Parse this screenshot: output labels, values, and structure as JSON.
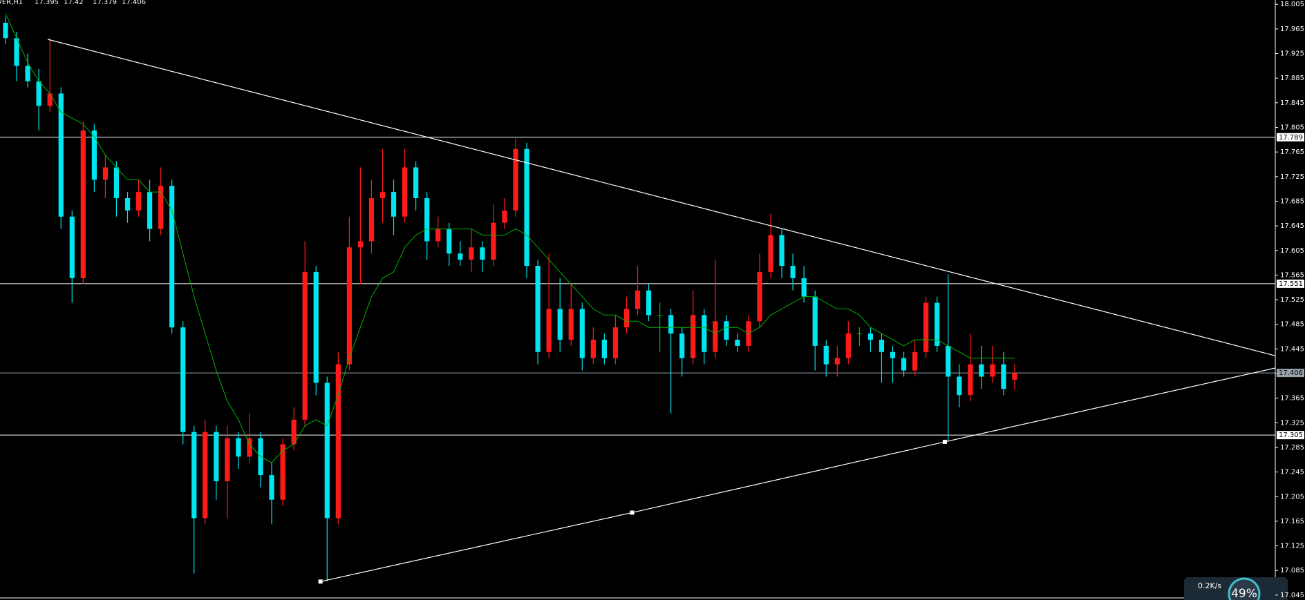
{
  "chart_data": {
    "type": "candlestick",
    "symbol": "VER,H1",
    "header_ohlc": [
      17.395,
      17.42,
      17.379,
      17.406
    ],
    "bull_color": "#ff1a1a",
    "bear_color": "#00e5f0",
    "doji_color": "#00c000",
    "ma_color": "#00b400",
    "xlim": [
      -0.5,
      114.5
    ],
    "ylim": [
      17.037,
      18.012
    ],
    "yticks": [
      18.005,
      17.965,
      17.925,
      17.885,
      17.845,
      17.805,
      17.765,
      17.725,
      17.685,
      17.645,
      17.605,
      17.565,
      17.525,
      17.485,
      17.445,
      17.405,
      17.365,
      17.325,
      17.285,
      17.245,
      17.205,
      17.165,
      17.125,
      17.085,
      17.045
    ],
    "levels": [
      {
        "value": 17.789,
        "color": "#ffffff"
      },
      {
        "value": 17.551,
        "color": "#ffffff"
      },
      {
        "value": 17.406,
        "color": "#9aa4ad"
      },
      {
        "value": 17.305,
        "color": "#ffffff"
      }
    ],
    "trendlines": [
      {
        "color": "#ffffff",
        "points": [
          [
            3.8,
            17.948
          ],
          [
            114.5,
            17.434
          ]
        ],
        "anchors": false
      },
      {
        "color": "#ffffff",
        "points": [
          [
            28.4,
            17.067
          ],
          [
            56.5,
            17.179
          ],
          [
            84.7,
            17.294
          ],
          [
            114.5,
            17.414
          ]
        ],
        "anchors": true
      }
    ],
    "ohlc": [
      [
        17.975,
        17.985,
        17.94,
        17.95
      ],
      [
        17.95,
        17.96,
        17.88,
        17.905
      ],
      [
        17.905,
        17.925,
        17.87,
        17.88
      ],
      [
        17.88,
        17.9,
        17.8,
        17.84
      ],
      [
        17.84,
        17.95,
        17.83,
        17.86
      ],
      [
        17.86,
        17.87,
        17.64,
        17.66
      ],
      [
        17.66,
        17.67,
        17.52,
        17.56
      ],
      [
        17.56,
        17.815,
        17.55,
        17.8
      ],
      [
        17.8,
        17.81,
        17.7,
        17.72
      ],
      [
        17.72,
        17.76,
        17.69,
        17.74
      ],
      [
        17.74,
        17.75,
        17.66,
        17.69
      ],
      [
        17.69,
        17.7,
        17.65,
        17.67
      ],
      [
        17.67,
        17.72,
        17.66,
        17.7
      ],
      [
        17.7,
        17.72,
        17.62,
        17.64
      ],
      [
        17.64,
        17.74,
        17.63,
        17.71
      ],
      [
        17.71,
        17.72,
        17.47,
        17.48
      ],
      [
        17.48,
        17.49,
        17.29,
        17.31
      ],
      [
        17.31,
        17.32,
        17.08,
        17.17
      ],
      [
        17.17,
        17.33,
        17.16,
        17.31
      ],
      [
        17.31,
        17.32,
        17.2,
        17.23
      ],
      [
        17.23,
        17.32,
        17.17,
        17.3
      ],
      [
        17.3,
        17.31,
        17.25,
        17.27
      ],
      [
        17.27,
        17.34,
        17.26,
        17.3
      ],
      [
        17.3,
        17.31,
        17.22,
        17.24
      ],
      [
        17.24,
        17.26,
        17.16,
        17.2
      ],
      [
        17.2,
        17.3,
        17.19,
        17.29
      ],
      [
        17.29,
        17.35,
        17.28,
        17.33
      ],
      [
        17.33,
        17.62,
        17.32,
        17.57
      ],
      [
        17.57,
        17.58,
        17.37,
        17.39
      ],
      [
        17.39,
        17.4,
        17.067,
        17.17
      ],
      [
        17.17,
        17.44,
        17.16,
        17.42
      ],
      [
        17.42,
        17.66,
        17.41,
        17.61
      ],
      [
        17.61,
        17.74,
        17.55,
        17.62
      ],
      [
        17.62,
        17.72,
        17.6,
        17.69
      ],
      [
        17.69,
        17.77,
        17.65,
        17.7
      ],
      [
        17.7,
        17.72,
        17.63,
        17.66
      ],
      [
        17.66,
        17.77,
        17.65,
        17.74
      ],
      [
        17.74,
        17.75,
        17.67,
        17.69
      ],
      [
        17.69,
        17.7,
        17.59,
        17.62
      ],
      [
        17.62,
        17.66,
        17.61,
        17.64
      ],
      [
        17.64,
        17.65,
        17.58,
        17.6
      ],
      [
        17.6,
        17.62,
        17.58,
        17.59
      ],
      [
        17.59,
        17.64,
        17.57,
        17.61
      ],
      [
        17.61,
        17.62,
        17.57,
        17.59
      ],
      [
        17.59,
        17.68,
        17.58,
        17.65
      ],
      [
        17.65,
        17.69,
        17.64,
        17.67
      ],
      [
        17.67,
        17.787,
        17.66,
        17.77
      ],
      [
        17.77,
        17.78,
        17.56,
        17.58
      ],
      [
        17.58,
        17.59,
        17.42,
        17.44
      ],
      [
        17.44,
        17.6,
        17.43,
        17.51
      ],
      [
        17.51,
        17.56,
        17.44,
        17.46
      ],
      [
        17.46,
        17.55,
        17.45,
        17.51
      ],
      [
        17.51,
        17.52,
        17.41,
        17.43
      ],
      [
        17.43,
        17.48,
        17.42,
        17.46
      ],
      [
        17.46,
        17.47,
        17.42,
        17.43
      ],
      [
        17.43,
        17.5,
        17.42,
        17.48
      ],
      [
        17.48,
        17.53,
        17.47,
        17.51
      ],
      [
        17.51,
        17.58,
        17.5,
        17.54
      ],
      [
        17.54,
        17.55,
        17.49,
        17.5
      ],
      [
        17.5,
        17.52,
        17.44,
        17.5
      ],
      [
        17.5,
        17.51,
        17.34,
        17.47
      ],
      [
        17.47,
        17.48,
        17.4,
        17.43
      ],
      [
        17.43,
        17.54,
        17.42,
        17.5
      ],
      [
        17.5,
        17.51,
        17.42,
        17.44
      ],
      [
        17.44,
        17.59,
        17.43,
        17.49
      ],
      [
        17.49,
        17.5,
        17.45,
        17.46
      ],
      [
        17.46,
        17.47,
        17.44,
        17.45
      ],
      [
        17.45,
        17.5,
        17.44,
        17.49
      ],
      [
        17.49,
        17.6,
        17.48,
        17.57
      ],
      [
        17.57,
        17.665,
        17.56,
        17.63
      ],
      [
        17.63,
        17.64,
        17.56,
        17.58
      ],
      [
        17.58,
        17.6,
        17.54,
        17.56
      ],
      [
        17.56,
        17.58,
        17.52,
        17.53
      ],
      [
        17.53,
        17.54,
        17.41,
        17.45
      ],
      [
        17.45,
        17.46,
        17.4,
        17.42
      ],
      [
        17.42,
        17.45,
        17.4,
        17.43
      ],
      [
        17.43,
        17.49,
        17.42,
        17.47
      ],
      [
        17.47,
        17.48,
        17.45,
        17.47
      ],
      [
        17.47,
        17.48,
        17.44,
        17.46
      ],
      [
        17.46,
        17.47,
        17.39,
        17.44
      ],
      [
        17.44,
        17.45,
        17.39,
        17.43
      ],
      [
        17.43,
        17.44,
        17.4,
        17.41
      ],
      [
        17.41,
        17.46,
        17.4,
        17.44
      ],
      [
        17.44,
        17.53,
        17.43,
        17.52
      ],
      [
        17.52,
        17.53,
        17.44,
        17.45
      ],
      [
        17.45,
        17.566,
        17.295,
        17.4
      ],
      [
        17.4,
        17.42,
        17.35,
        17.37
      ],
      [
        17.37,
        17.47,
        17.36,
        17.42
      ],
      [
        17.42,
        17.45,
        17.38,
        17.4
      ],
      [
        17.4,
        17.45,
        17.39,
        17.42
      ],
      [
        17.42,
        17.44,
        17.37,
        17.38
      ],
      [
        17.395,
        17.42,
        17.379,
        17.406
      ]
    ],
    "ma": [
      17.99,
      17.95,
      17.91,
      17.88,
      17.86,
      17.83,
      17.82,
      17.81,
      17.79,
      17.76,
      17.74,
      17.72,
      17.72,
      17.7,
      17.7,
      17.67,
      17.6,
      17.53,
      17.47,
      17.41,
      17.36,
      17.33,
      17.29,
      17.27,
      17.26,
      17.28,
      17.29,
      17.32,
      17.33,
      17.32,
      17.37,
      17.43,
      17.48,
      17.53,
      17.56,
      17.57,
      17.61,
      17.63,
      17.64,
      17.64,
      17.64,
      17.64,
      17.64,
      17.63,
      17.63,
      17.63,
      17.64,
      17.63,
      17.61,
      17.59,
      17.57,
      17.55,
      17.53,
      17.51,
      17.5,
      17.5,
      17.49,
      17.49,
      17.48,
      17.48,
      17.48,
      17.48,
      17.48,
      17.48,
      17.47,
      17.48,
      17.48,
      17.47,
      17.48,
      17.5,
      17.51,
      17.52,
      17.53,
      17.53,
      17.52,
      17.51,
      17.51,
      17.5,
      17.48,
      17.47,
      17.46,
      17.45,
      17.46,
      17.46,
      17.46,
      17.45,
      17.44,
      17.43,
      17.43,
      17.43,
      17.43,
      17.43
    ]
  },
  "overlay": {
    "upload": "0.2K/s",
    "percent": "49%"
  }
}
